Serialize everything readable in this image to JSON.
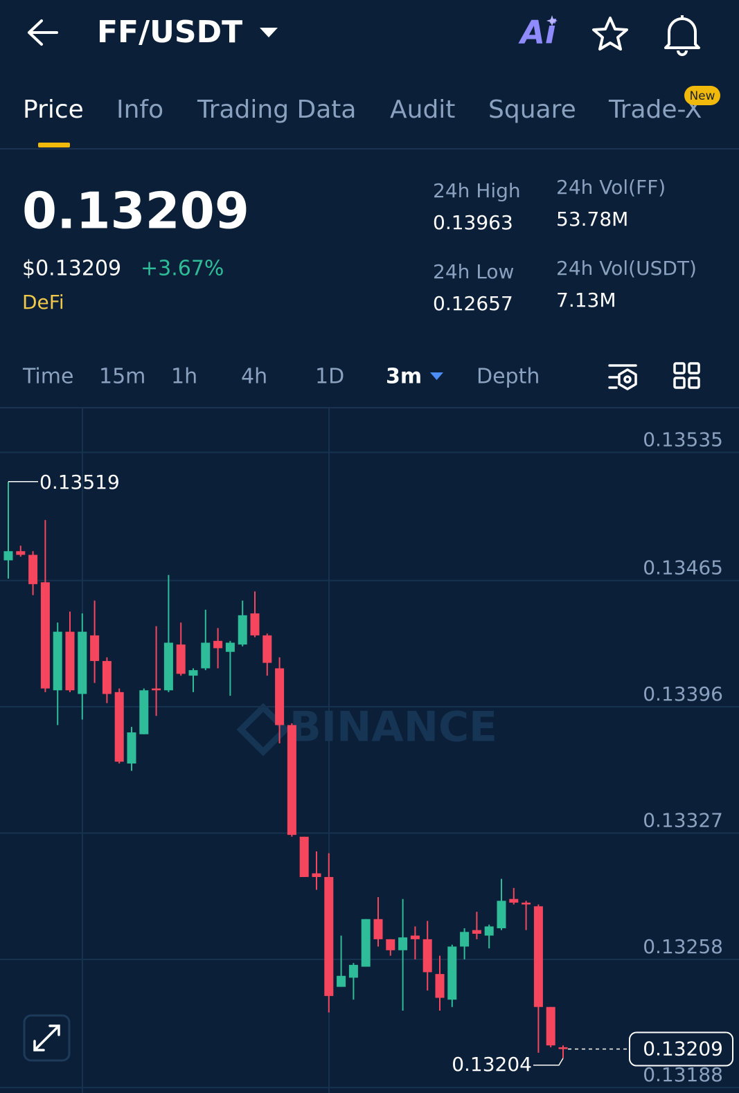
{
  "header": {
    "pair": "FF/USDT"
  },
  "tabs": [
    "Price",
    "Info",
    "Trading Data",
    "Audit",
    "Square",
    "Trade-X"
  ],
  "tab_badge": "New",
  "ticker": {
    "last_price": "0.13209",
    "usd_price": "$0.13209",
    "change": "+3.67%",
    "tag": "DeFi",
    "stats": [
      {
        "label": "24h High",
        "value": "0.13963"
      },
      {
        "label": "24h Vol(FF)",
        "value": "53.78M"
      },
      {
        "label": "24h Low",
        "value": "0.12657"
      },
      {
        "label": "24h Vol(USDT)",
        "value": "7.13M"
      }
    ]
  },
  "intervals": [
    "Time",
    "15m",
    "1h",
    "4h",
    "1D",
    "3m",
    "Depth"
  ],
  "watermark": "BINANCE",
  "chart_data": {
    "type": "candlestick",
    "categories": [
      null,
      null,
      null,
      null,
      null,
      null,
      null,
      null,
      null,
      null,
      null,
      null,
      null,
      null,
      null,
      null,
      null,
      null,
      null,
      null,
      null,
      null,
      null,
      null,
      null,
      null,
      null,
      null,
      null,
      null,
      null,
      null,
      null,
      null,
      null,
      null,
      null,
      null,
      null,
      null,
      null,
      null,
      null,
      null,
      null,
      null
    ],
    "open": [
      0.13476,
      0.13481,
      0.13479,
      0.13464,
      0.13405,
      0.13437,
      0.13403,
      0.13435,
      0.13421,
      0.13404,
      0.13365,
      0.13381,
      0.13406,
      0.13405,
      0.1343,
      0.13413,
      0.13417,
      0.13432,
      0.13426,
      0.1343,
      0.13447,
      0.13435,
      0.13417,
      0.13386,
      0.13325,
      0.13305,
      0.13303,
      0.13243,
      0.13248,
      0.13254,
      0.1328,
      0.13269,
      0.13263,
      0.13271,
      0.13269,
      0.1325,
      0.13236,
      0.13265,
      0.13274,
      0.13271,
      0.13275,
      0.13291,
      0.13289,
      0.13287,
      0.13232,
      0.1321
    ],
    "high": [
      0.13519,
      0.13484,
      0.13481,
      0.13498,
      0.13442,
      0.13448,
      0.13447,
      0.13454,
      0.13423,
      0.13406,
      0.13385,
      0.13406,
      0.1344,
      0.13468,
      0.13442,
      0.13417,
      0.13449,
      0.13439,
      0.13432,
      0.13454,
      0.13459,
      0.13436,
      0.13423,
      0.13387,
      0.13325,
      0.13317,
      0.13316,
      0.13271,
      0.13256,
      0.1328,
      0.13292,
      0.13269,
      0.13291,
      0.13276,
      0.13279,
      0.1326,
      0.13266,
      0.13275,
      0.13284,
      0.13277,
      0.13302,
      0.13297,
      0.1329,
      0.13288,
      0.13232,
      0.13211
    ],
    "low": [
      0.13466,
      0.13478,
      0.13457,
      0.13404,
      0.13386,
      0.13404,
      0.13389,
      0.13409,
      0.13398,
      0.13365,
      0.13361,
      0.13381,
      0.13391,
      0.13404,
      0.13413,
      0.13404,
      0.13416,
      0.13417,
      0.13402,
      0.13429,
      0.13434,
      0.13413,
      0.13376,
      0.13325,
      0.13303,
      0.13296,
      0.13229,
      0.13243,
      0.13236,
      0.13254,
      0.13265,
      0.1326,
      0.1323,
      0.13258,
      0.13241,
      0.1323,
      0.13232,
      0.13258,
      0.13269,
      0.13264,
      0.13274,
      0.13288,
      0.13274,
      0.13207,
      0.1321,
      0.13204
    ],
    "close": [
      0.13481,
      0.13479,
      0.13463,
      0.13406,
      0.13437,
      0.13405,
      0.13437,
      0.13421,
      0.13403,
      0.13366,
      0.13382,
      0.13405,
      0.13405,
      0.13431,
      0.13414,
      0.13416,
      0.13431,
      0.13428,
      0.13431,
      0.13446,
      0.13435,
      0.1342,
      0.13386,
      0.13326,
      0.13303,
      0.13303,
      0.13238,
      0.13249,
      0.13255,
      0.1328,
      0.13269,
      0.13263,
      0.1327,
      0.13269,
      0.13251,
      0.13237,
      0.13265,
      0.13273,
      0.13272,
      0.13276,
      0.1329,
      0.13289,
      0.13288,
      0.13232,
      0.13211,
      0.13209
    ],
    "up_color": "#2ebd98",
    "down_color": "#f6465d",
    "ylim": [
      0.13185,
      0.13559
    ],
    "yticks": [
      0.13535,
      0.13465,
      0.13396,
      0.13327,
      0.13258,
      0.13188
    ],
    "grid": true
  }
}
